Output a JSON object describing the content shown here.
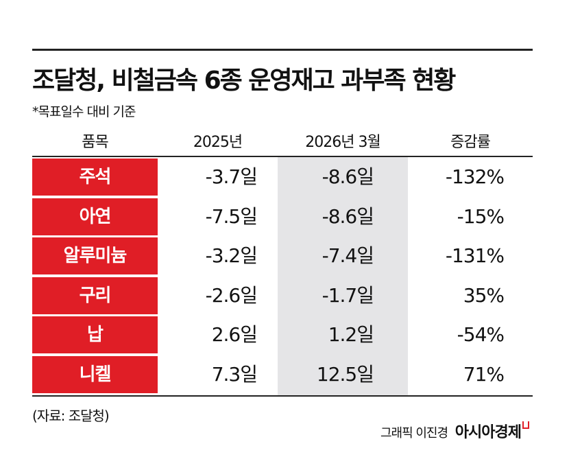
{
  "title": "조달청, 비철금속 6종 운영재고 과부족 현황",
  "subtitle": "*목표일수 대비 기준",
  "colors": {
    "category_fill": "#e01e26",
    "highlight_column": "#e5e5e7",
    "rule": "#222222"
  },
  "chart_data": {
    "type": "table",
    "columns": [
      "품목",
      "2025년",
      "2026년 3월",
      "증감률"
    ],
    "rows": [
      {
        "item": "주석",
        "y2025": "-3.7일",
        "m2026_03": "-8.6일",
        "change": "-132%"
      },
      {
        "item": "아연",
        "y2025": "-7.5일",
        "m2026_03": "-8.6일",
        "change": "-15%"
      },
      {
        "item": "알루미늄",
        "y2025": "-3.2일",
        "m2026_03": "-7.4일",
        "change": "-131%"
      },
      {
        "item": "구리",
        "y2025": "-2.6일",
        "m2026_03": "-1.7일",
        "change": "35%"
      },
      {
        "item": "납",
        "y2025": "2.6일",
        "m2026_03": "1.2일",
        "change": "-54%"
      },
      {
        "item": "니켈",
        "y2025": "7.3일",
        "m2026_03": "12.5일",
        "change": "71%"
      }
    ]
  },
  "source": "(자료: 조달청)",
  "credit": "그래픽 이진경",
  "logo": "아시아경제"
}
